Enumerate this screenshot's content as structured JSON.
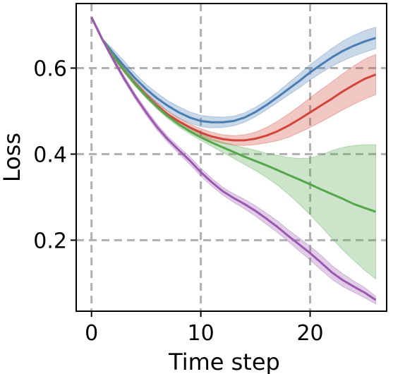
{
  "chart_data": {
    "type": "line",
    "xlabel": "Time step",
    "ylabel": "Loss",
    "xlim": [
      -1.4,
      27
    ],
    "ylim": [
      0.035,
      0.75
    ],
    "xticks": [
      0,
      10,
      20
    ],
    "yticks": [
      0.2,
      0.4,
      0.6
    ],
    "xtick_labels": [
      "0",
      "10",
      "20"
    ],
    "ytick_labels": [
      "0.2",
      "0.4",
      "0.6"
    ],
    "grid": true,
    "series": [
      {
        "color": "#4a7db4",
        "x": [
          0,
          1,
          2,
          3,
          4,
          5,
          6,
          7,
          8,
          9,
          10,
          11,
          12,
          13,
          14,
          15,
          16,
          17,
          18,
          19,
          20,
          21,
          22,
          23,
          24,
          25,
          26
        ],
        "y": [
          0.718,
          0.666,
          0.634,
          0.604,
          0.576,
          0.551,
          0.53,
          0.512,
          0.497,
          0.485,
          0.477,
          0.474,
          0.474,
          0.477,
          0.485,
          0.498,
          0.514,
          0.532,
          0.551,
          0.57,
          0.59,
          0.608,
          0.625,
          0.64,
          0.652,
          0.662,
          0.67
        ],
        "lower": [
          0.718,
          0.664,
          0.625,
          0.592,
          0.565,
          0.54,
          0.518,
          0.5,
          0.484,
          0.472,
          0.464,
          0.461,
          0.462,
          0.466,
          0.474,
          0.487,
          0.503,
          0.52,
          0.537,
          0.554,
          0.572,
          0.589,
          0.604,
          0.617,
          0.628,
          0.637,
          0.645
        ],
        "upper": [
          0.718,
          0.668,
          0.643,
          0.616,
          0.587,
          0.562,
          0.542,
          0.524,
          0.51,
          0.498,
          0.49,
          0.487,
          0.486,
          0.488,
          0.496,
          0.509,
          0.525,
          0.544,
          0.565,
          0.586,
          0.608,
          0.627,
          0.646,
          0.663,
          0.676,
          0.687,
          0.695
        ]
      },
      {
        "color": "#d1453b",
        "x": [
          0,
          1,
          2,
          3,
          4,
          5,
          6,
          7,
          8,
          9,
          10,
          11,
          12,
          13,
          14,
          15,
          16,
          17,
          18,
          19,
          20,
          21,
          22,
          23,
          24,
          25,
          26
        ],
        "y": [
          0.718,
          0.666,
          0.628,
          0.594,
          0.564,
          0.537,
          0.513,
          0.492,
          0.476,
          0.462,
          0.45,
          0.441,
          0.435,
          0.432,
          0.432,
          0.436,
          0.443,
          0.453,
          0.466,
          0.481,
          0.497,
          0.513,
          0.529,
          0.546,
          0.561,
          0.575,
          0.585
        ],
        "lower": [
          0.718,
          0.664,
          0.624,
          0.589,
          0.558,
          0.531,
          0.506,
          0.485,
          0.468,
          0.454,
          0.441,
          0.432,
          0.425,
          0.421,
          0.42,
          0.422,
          0.426,
          0.431,
          0.439,
          0.45,
          0.462,
          0.475,
          0.489,
          0.503,
          0.516,
          0.528,
          0.538
        ],
        "upper": [
          0.718,
          0.668,
          0.632,
          0.599,
          0.57,
          0.543,
          0.52,
          0.499,
          0.484,
          0.47,
          0.459,
          0.451,
          0.445,
          0.443,
          0.445,
          0.451,
          0.462,
          0.476,
          0.493,
          0.511,
          0.531,
          0.55,
          0.568,
          0.587,
          0.605,
          0.621,
          0.632
        ]
      },
      {
        "color": "#56a64b",
        "x": [
          0,
          1,
          2,
          3,
          4,
          5,
          6,
          7,
          8,
          9,
          10,
          11,
          12,
          13,
          14,
          15,
          16,
          17,
          18,
          19,
          20,
          21,
          22,
          23,
          24,
          25,
          26
        ],
        "y": [
          0.718,
          0.666,
          0.628,
          0.594,
          0.563,
          0.535,
          0.51,
          0.488,
          0.469,
          0.453,
          0.439,
          0.427,
          0.416,
          0.405,
          0.394,
          0.384,
          0.374,
          0.363,
          0.352,
          0.341,
          0.33,
          0.318,
          0.307,
          0.296,
          0.284,
          0.275,
          0.266
        ],
        "lower": [
          0.718,
          0.664,
          0.624,
          0.589,
          0.558,
          0.53,
          0.505,
          0.482,
          0.463,
          0.447,
          0.432,
          0.418,
          0.404,
          0.39,
          0.376,
          0.362,
          0.346,
          0.328,
          0.307,
          0.284,
          0.259,
          0.232,
          0.204,
          0.177,
          0.153,
          0.13,
          0.11
        ],
        "upper": [
          0.718,
          0.668,
          0.632,
          0.599,
          0.568,
          0.54,
          0.515,
          0.494,
          0.476,
          0.46,
          0.447,
          0.436,
          0.428,
          0.421,
          0.415,
          0.409,
          0.402,
          0.397,
          0.392,
          0.39,
          0.391,
          0.398,
          0.408,
          0.416,
          0.42,
          0.422,
          0.422
        ]
      },
      {
        "color": "#9b59b0",
        "x": [
          0,
          1,
          2,
          3,
          4,
          5,
          6,
          7,
          8,
          9,
          10,
          11,
          12,
          13,
          14,
          15,
          16,
          17,
          18,
          19,
          20,
          21,
          22,
          23,
          24,
          25,
          26
        ],
        "y": [
          0.718,
          0.666,
          0.619,
          0.575,
          0.534,
          0.497,
          0.463,
          0.434,
          0.409,
          0.385,
          0.358,
          0.335,
          0.314,
          0.298,
          0.284,
          0.268,
          0.25,
          0.231,
          0.21,
          0.19,
          0.17,
          0.148,
          0.125,
          0.107,
          0.092,
          0.078,
          0.061
        ],
        "lower": [
          0.718,
          0.663,
          0.614,
          0.569,
          0.528,
          0.49,
          0.456,
          0.427,
          0.401,
          0.376,
          0.349,
          0.326,
          0.305,
          0.288,
          0.273,
          0.256,
          0.237,
          0.218,
          0.197,
          0.175,
          0.154,
          0.131,
          0.109,
          0.092,
          0.079,
          0.066,
          0.052
        ],
        "upper": [
          0.718,
          0.669,
          0.624,
          0.581,
          0.54,
          0.504,
          0.47,
          0.441,
          0.417,
          0.394,
          0.367,
          0.344,
          0.323,
          0.308,
          0.295,
          0.28,
          0.263,
          0.245,
          0.224,
          0.205,
          0.186,
          0.165,
          0.141,
          0.122,
          0.105,
          0.09,
          0.07
        ]
      }
    ]
  }
}
